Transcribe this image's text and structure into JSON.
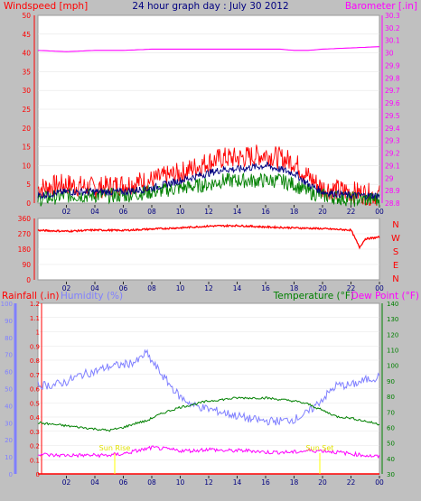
{
  "title": "24 hour graph day : July 30 2012",
  "wind_panel": {
    "left_label": "Windspeed [mph]",
    "right_label": "Barometer [.in]",
    "left_ticks": [
      "0",
      "5",
      "10",
      "15",
      "20",
      "25",
      "30",
      "35",
      "40",
      "45",
      "50"
    ],
    "right_ticks": [
      "28.8",
      "28.9",
      "29",
      "29.1",
      "29.2",
      "29.3",
      "29.4",
      "29.5",
      "29.6",
      "29.7",
      "29.8",
      "29.9",
      "30",
      "30.1",
      "30.2",
      "30.3"
    ]
  },
  "direction_panel": {
    "left_ticks": [
      "0",
      "90",
      "180",
      "270",
      "360"
    ],
    "compass": [
      "N",
      "W",
      "S",
      "E",
      "N"
    ]
  },
  "weather_panel": {
    "rain_label": "Rainfall (.in)",
    "humidity_label": "Humidity (%)",
    "temp_label": "Temperature (°F)",
    "dew_label": "Dew Point (°F)",
    "rain_ticks": [
      "0",
      "0.1",
      "0.2",
      "0.3",
      "0.4",
      "0.5",
      "0.6",
      "0.7",
      "0.8",
      "0.9",
      "1",
      "1.1",
      "1.2"
    ],
    "humidity_ticks": [
      "0",
      "10",
      "20",
      "30",
      "40",
      "50",
      "60",
      "70",
      "80",
      "90",
      "100"
    ],
    "temp_ticks": [
      "30",
      "40",
      "50",
      "60",
      "70",
      "80",
      "90",
      "100",
      "110",
      "120",
      "130",
      "140"
    ],
    "sunrise_label": "Sun Rise",
    "sunset_label": "Sun Set"
  },
  "x_ticks": [
    "02",
    "04",
    "06",
    "08",
    "10",
    "12",
    "14",
    "16",
    "18",
    "20",
    "22",
    "00"
  ],
  "colors": {
    "wind_gust": "#ff0000",
    "wind_avg": "#000080",
    "wind_min": "#008000",
    "barometer": "#ff00ff",
    "direction": "#ff0000",
    "humidity": "#8080ff",
    "temperature": "#008000",
    "dewpoint": "#ff00ff",
    "rain": "#ff0000",
    "sun": "#ffff00"
  },
  "chart_data": [
    {
      "type": "line",
      "title": "24 hour graph day : July 30 2012",
      "ylabel": "Windspeed [mph]",
      "ylabel_right": "Barometer [.in]",
      "ylim": [
        0,
        50
      ],
      "ylim_right": [
        28.8,
        30.3
      ],
      "x": [
        0,
        2,
        4,
        6,
        8,
        10,
        12,
        13,
        14,
        16,
        17,
        18,
        19,
        20,
        22,
        24
      ],
      "series": [
        {
          "name": "Windspeed [mph]",
          "axis": "left",
          "values": [
            4,
            5,
            4,
            5,
            6,
            8,
            11,
            12,
            12,
            13,
            12,
            11,
            7,
            4,
            3,
            2
          ]
        },
        {
          "name": "",
          "axis": "left",
          "values": [
            2,
            3,
            3,
            3,
            4,
            6,
            8,
            9,
            9,
            10,
            9,
            8,
            5,
            3,
            2,
            2
          ]
        },
        {
          "name": "",
          "axis": "left",
          "values": [
            1,
            2,
            2,
            2,
            3,
            4,
            5,
            6,
            6,
            6,
            6,
            5,
            3,
            2,
            1,
            1
          ]
        },
        {
          "name": "Barometer [.in]",
          "axis": "right",
          "values": [
            30.02,
            30.01,
            30.02,
            30.02,
            30.03,
            30.03,
            30.03,
            30.03,
            30.03,
            30.03,
            30.03,
            30.02,
            30.02,
            30.03,
            30.04,
            30.05
          ]
        }
      ]
    },
    {
      "type": "line",
      "ylim": [
        0,
        360
      ],
      "x": [
        0,
        2,
        4,
        6,
        8,
        10,
        12,
        14,
        16,
        18,
        20,
        22,
        22.6,
        23,
        24
      ],
      "series": [
        {
          "name": "",
          "values": [
            290,
            285,
            292,
            290,
            298,
            305,
            315,
            318,
            310,
            305,
            300,
            292,
            190,
            240,
            250
          ]
        }
      ]
    },
    {
      "type": "line",
      "xlabel": "",
      "ylim_rain": [
        0,
        1.2
      ],
      "ylim_humidity": [
        0,
        100
      ],
      "ylim_temp": [
        30,
        140
      ],
      "x": [
        0,
        1,
        2,
        3,
        4,
        5,
        6,
        7,
        7.6,
        8,
        9,
        10,
        11,
        12,
        13,
        14,
        15,
        16,
        17,
        18,
        19,
        20,
        21,
        22,
        23,
        24
      ],
      "series": [
        {
          "name": "Rainfall (.in)",
          "axis": "rain",
          "values": [
            0,
            0,
            0,
            0,
            0,
            0,
            0,
            0,
            0,
            0,
            0,
            0,
            0,
            0,
            0,
            0,
            0,
            0,
            0,
            0,
            0,
            0,
            0,
            0,
            0,
            0
          ]
        },
        {
          "name": "Humidity (%)",
          "axis": "humidity",
          "values": [
            52,
            52,
            54,
            58,
            60,
            63,
            64,
            66,
            71,
            66,
            55,
            45,
            40,
            38,
            36,
            34,
            32,
            31,
            31,
            32,
            36,
            44,
            52,
            52,
            55,
            57
          ]
        },
        {
          "name": "Temperature (°F)",
          "axis": "temp",
          "values": [
            63,
            62,
            61,
            60,
            59,
            58,
            60,
            63,
            64,
            66,
            70,
            73,
            75,
            77,
            78,
            79,
            79,
            79,
            78,
            77,
            75,
            71,
            67,
            66,
            64,
            62
          ]
        },
        {
          "name": "Dew Point (°F)",
          "axis": "temp",
          "values": [
            43,
            42,
            42,
            42,
            42,
            42,
            43,
            45,
            46,
            47,
            46,
            45,
            45,
            46,
            45,
            45,
            45,
            44,
            44,
            44,
            45,
            45,
            44,
            43,
            42,
            41
          ]
        }
      ],
      "annotations": [
        "Sun Rise",
        "Sun Set"
      ]
    }
  ]
}
